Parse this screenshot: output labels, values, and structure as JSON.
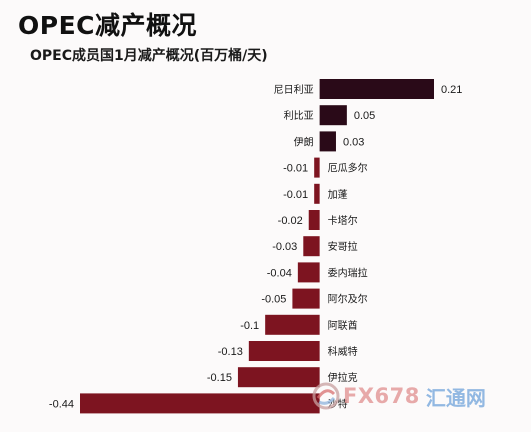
{
  "title": "OPEC减产概况",
  "subtitle": "OPEC成员国1月减产概况(百万桶/天)",
  "colors": {
    "positive": "#2a0a18",
    "negative": "#7d1420"
  },
  "watermark": {
    "brand": "FX678",
    "name": "汇通网"
  },
  "chart_data": {
    "type": "bar",
    "orientation": "horizontal",
    "title": "OPEC减产概况",
    "subtitle": "OPEC成员国1月减产概况(百万桶/天)",
    "categories": [
      "尼日利亚",
      "利比亚",
      "伊朗",
      "厄瓜多尔",
      "加蓬",
      "卡塔尔",
      "安哥拉",
      "委内瑞拉",
      "阿尔及尔",
      "阿联酋",
      "科威特",
      "伊拉克",
      "沙特"
    ],
    "values": [
      0.21,
      0.05,
      0.03,
      -0.01,
      -0.01,
      -0.02,
      -0.03,
      -0.04,
      -0.05,
      -0.1,
      -0.13,
      -0.15,
      -0.44
    ],
    "xlim": [
      -0.44,
      0.21
    ],
    "grid": false,
    "legend": "none"
  }
}
